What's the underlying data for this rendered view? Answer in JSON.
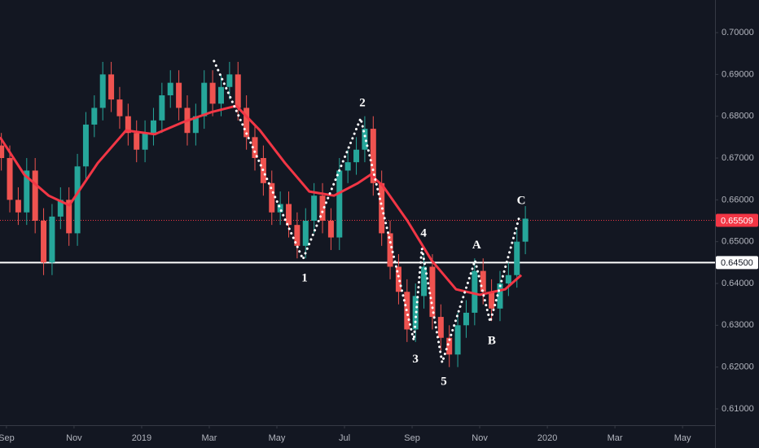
{
  "chart_data": {
    "type": "candlestick",
    "xlim": [
      -0.19,
      20.96
    ],
    "ylim": [
      0.6061,
      0.7078
    ],
    "xticks": [
      {
        "value": 0,
        "label": "Sep"
      },
      {
        "value": 2,
        "label": "Nov"
      },
      {
        "value": 4,
        "label": "2019"
      },
      {
        "value": 6,
        "label": "Mar"
      },
      {
        "value": 8,
        "label": "May"
      },
      {
        "value": 10,
        "label": "Jul"
      },
      {
        "value": 12,
        "label": "Sep"
      },
      {
        "value": 14,
        "label": "Nov"
      },
      {
        "value": 16,
        "label": "2020"
      },
      {
        "value": 18,
        "label": "Mar"
      },
      {
        "value": 20,
        "label": "May"
      }
    ],
    "yticks": [
      {
        "value": 0.61,
        "label": "0.61000"
      },
      {
        "value": 0.62,
        "label": "0.62000"
      },
      {
        "value": 0.63,
        "label": "0.63000"
      },
      {
        "value": 0.64,
        "label": "0.64000"
      },
      {
        "value": 0.65,
        "label": "0.65000"
      },
      {
        "value": 0.66,
        "label": "0.66000"
      },
      {
        "value": 0.67,
        "label": "0.67000"
      },
      {
        "value": 0.68,
        "label": "0.68000"
      },
      {
        "value": 0.69,
        "label": "0.69000"
      },
      {
        "value": 0.7,
        "label": "0.70000"
      }
    ],
    "up_color": "#26a69a",
    "down_color": "#ef5350",
    "x": [
      -0.15,
      0.1,
      0.35,
      0.6,
      0.85,
      1.1,
      1.35,
      1.6,
      1.85,
      2.1,
      2.35,
      2.6,
      2.85,
      3.1,
      3.35,
      3.6,
      3.85,
      4.1,
      4.35,
      4.6,
      4.85,
      5.1,
      5.35,
      5.6,
      5.85,
      6.1,
      6.35,
      6.6,
      6.85,
      7.1,
      7.35,
      7.6,
      7.85,
      8.1,
      8.35,
      8.6,
      8.85,
      9.1,
      9.35,
      9.6,
      9.85,
      10.1,
      10.35,
      10.6,
      10.85,
      11.1,
      11.35,
      11.6,
      11.85,
      12.1,
      12.35,
      12.6,
      12.85,
      13.1,
      13.35,
      13.6,
      13.85,
      14.1,
      14.35,
      14.6,
      14.85,
      15.1,
      15.35
    ],
    "open": [
      0.673,
      0.67,
      0.66,
      0.657,
      0.667,
      0.655,
      0.645,
      0.656,
      0.66,
      0.652,
      0.668,
      0.678,
      0.682,
      0.69,
      0.684,
      0.68,
      0.676,
      0.672,
      0.676,
      0.679,
      0.685,
      0.688,
      0.682,
      0.676,
      0.68,
      0.688,
      0.683,
      0.687,
      0.69,
      0.682,
      0.675,
      0.67,
      0.664,
      0.657,
      0.659,
      0.654,
      0.649,
      0.655,
      0.661,
      0.655,
      0.651,
      0.667,
      0.669,
      0.672,
      0.677,
      0.664,
      0.652,
      0.644,
      0.638,
      0.629,
      0.637,
      0.644,
      0.632,
      0.627,
      0.623,
      0.63,
      0.633,
      0.643,
      0.638,
      0.634,
      0.64,
      0.642,
      0.65
    ],
    "high": [
      0.676,
      0.673,
      0.663,
      0.67,
      0.67,
      0.658,
      0.659,
      0.663,
      0.663,
      0.671,
      0.681,
      0.685,
      0.693,
      0.693,
      0.687,
      0.683,
      0.679,
      0.679,
      0.682,
      0.688,
      0.691,
      0.691,
      0.685,
      0.683,
      0.691,
      0.691,
      0.69,
      0.693,
      0.693,
      0.685,
      0.678,
      0.673,
      0.667,
      0.662,
      0.662,
      0.657,
      0.658,
      0.664,
      0.664,
      0.658,
      0.67,
      0.672,
      0.675,
      0.68,
      0.68,
      0.667,
      0.655,
      0.647,
      0.641,
      0.64,
      0.647,
      0.647,
      0.635,
      0.63,
      0.633,
      0.636,
      0.646,
      0.646,
      0.641,
      0.643,
      0.645,
      0.653,
      0.6585
    ],
    "low": [
      0.667,
      0.657,
      0.654,
      0.654,
      0.652,
      0.642,
      0.642,
      0.653,
      0.649,
      0.649,
      0.665,
      0.675,
      0.679,
      0.681,
      0.677,
      0.673,
      0.669,
      0.669,
      0.673,
      0.676,
      0.682,
      0.679,
      0.673,
      0.673,
      0.677,
      0.68,
      0.68,
      0.684,
      0.679,
      0.672,
      0.667,
      0.661,
      0.654,
      0.654,
      0.651,
      0.646,
      0.646,
      0.652,
      0.652,
      0.648,
      0.648,
      0.664,
      0.666,
      0.669,
      0.661,
      0.649,
      0.641,
      0.635,
      0.626,
      0.626,
      0.634,
      0.629,
      0.624,
      0.62,
      0.62,
      0.627,
      0.63,
      0.635,
      0.631,
      0.631,
      0.637,
      0.639,
      0.647
    ],
    "close": [
      0.67,
      0.66,
      0.657,
      0.667,
      0.655,
      0.645,
      0.656,
      0.66,
      0.652,
      0.668,
      0.678,
      0.682,
      0.69,
      0.684,
      0.68,
      0.676,
      0.672,
      0.676,
      0.679,
      0.685,
      0.688,
      0.682,
      0.676,
      0.68,
      0.688,
      0.683,
      0.687,
      0.69,
      0.682,
      0.675,
      0.67,
      0.664,
      0.657,
      0.659,
      0.654,
      0.649,
      0.655,
      0.661,
      0.655,
      0.651,
      0.667,
      0.669,
      0.672,
      0.677,
      0.664,
      0.652,
      0.644,
      0.638,
      0.629,
      0.637,
      0.644,
      0.632,
      0.627,
      0.623,
      0.63,
      0.633,
      0.643,
      0.638,
      0.634,
      0.64,
      0.642,
      0.65,
      0.6555
    ],
    "moving_average": {
      "color": "#f23645",
      "x": [
        -0.19,
        0.53,
        1.25,
        1.86,
        2.7,
        3.54,
        4.39,
        5.23,
        6.07,
        6.8,
        7.5,
        8.24,
        8.96,
        9.69,
        10.4,
        10.77,
        11.13,
        11.86,
        12.58,
        13.3,
        14.0,
        14.75,
        15.23
      ],
      "values": [
        0.675,
        0.666,
        0.661,
        0.6587,
        0.6688,
        0.6766,
        0.6757,
        0.6786,
        0.681,
        0.6825,
        0.6766,
        0.6688,
        0.662,
        0.661,
        0.664,
        0.666,
        0.6634,
        0.655,
        0.6455,
        0.6386,
        0.6373,
        0.6386,
        0.642
      ]
    },
    "wave": {
      "color": "#ffffff",
      "x": [
        6.14,
        8.77,
        10.48,
        12.05,
        12.29,
        12.89,
        13.86,
        14.31,
        15.18
      ],
      "values": [
        0.6932,
        0.6458,
        0.6795,
        0.6264,
        0.6484,
        0.6211,
        0.6455,
        0.6308,
        0.6562
      ],
      "labels": [
        null,
        "1",
        "2",
        "3",
        "4",
        "5",
        "A",
        "B",
        "C"
      ]
    },
    "hlines": [
      {
        "value": 0.645,
        "label": "0.64500",
        "color": "#ffffff",
        "style": "solid"
      },
      {
        "value": 0.65509,
        "label": "0.65509",
        "color": "#f23645",
        "style": "dotted"
      }
    ]
  }
}
